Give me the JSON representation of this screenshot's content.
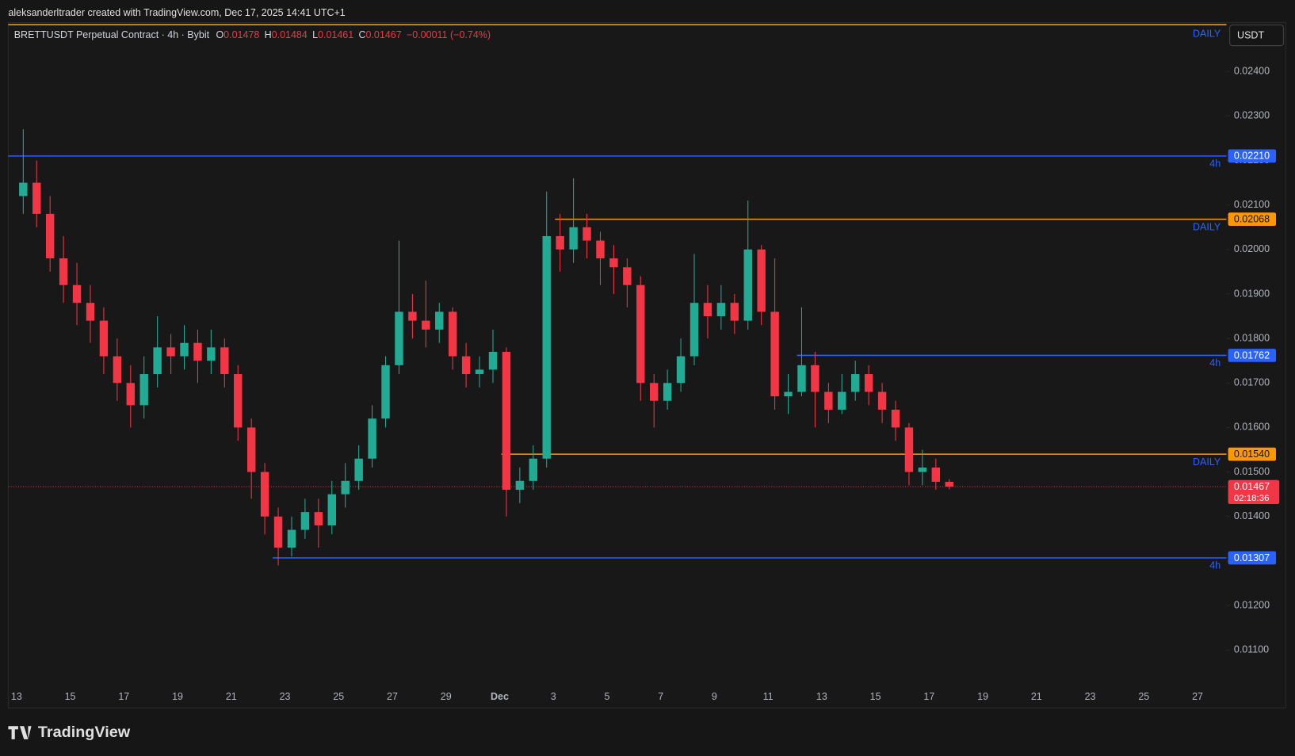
{
  "header": "aleksanderltrader created with TradingView.com, Dec 17, 2025 14:41 UTC+1",
  "logo": "TradingView",
  "currency": "USDT",
  "chart_data": {
    "type": "candlestick",
    "legend": {
      "symbol": "BRETTUSDT Perpetual Contract · 4h · Bybit",
      "ohlc": [
        {
          "key": "O",
          "value": "0.01478"
        },
        {
          "key": "H",
          "value": "0.01484"
        },
        {
          "key": "L",
          "value": "0.01461"
        },
        {
          "key": "C",
          "value": "0.01467"
        }
      ],
      "change": "−0.00011 (−0.74%)"
    },
    "up_color": "#22ab94",
    "down_color": "#f23645",
    "categories": [
      "13",
      null,
      null,
      null,
      "15",
      null,
      null,
      null,
      "17",
      null,
      null,
      null,
      "19",
      null,
      null,
      null,
      "21",
      null,
      null,
      null,
      "23",
      null,
      null,
      null,
      "25",
      null,
      null,
      null,
      "27",
      null,
      null,
      null,
      "29",
      null,
      null,
      null,
      "Dec",
      null,
      null,
      null,
      "3",
      null,
      null,
      null,
      "5",
      null,
      null,
      null,
      "7",
      null,
      null,
      null,
      "9",
      null,
      null,
      null,
      "11",
      null,
      null,
      null,
      "13",
      null,
      null,
      null,
      "15",
      null,
      null,
      null,
      "17",
      null,
      null,
      null,
      "19",
      null,
      null,
      null,
      "21",
      null,
      null,
      null,
      "23",
      null,
      null,
      null,
      "25",
      null,
      null,
      null,
      "27",
      null
    ],
    "open": [
      0.0212,
      0.0215,
      0.0208,
      0.0198,
      0.0192,
      0.0188,
      0.0184,
      0.0176,
      0.017,
      0.0165,
      0.0172,
      0.0178,
      0.0176,
      0.0179,
      0.0175,
      0.0178,
      0.0172,
      0.016,
      0.015,
      0.014,
      0.0133,
      0.0137,
      0.0141,
      0.0138,
      0.0145,
      0.0148,
      0.0153,
      0.0162,
      0.0174,
      0.0186,
      0.0184,
      0.0182,
      0.0186,
      0.0176,
      0.0172,
      0.0173,
      0.0177,
      0.0146,
      0.0148,
      0.0153,
      0.0203,
      0.02,
      0.0205,
      0.0202,
      0.0198,
      0.0196,
      0.0192,
      0.017,
      0.0166,
      0.017,
      0.0176,
      0.0188,
      0.0185,
      0.0188,
      0.0184,
      0.02,
      0.0186,
      0.0167,
      0.0168,
      0.0174,
      0.0168,
      0.0164,
      0.0168,
      0.0172,
      0.0168,
      0.0164,
      0.016,
      0.015,
      0.0151,
      0.01478,
      null,
      null,
      null,
      null,
      null,
      null,
      null,
      null,
      null,
      null,
      null,
      null,
      null,
      null,
      null,
      null,
      null,
      null,
      null,
      null
    ],
    "high": [
      0.0227,
      0.022,
      0.0212,
      0.0203,
      0.0197,
      0.0192,
      0.0187,
      0.018,
      0.0174,
      0.0176,
      0.0185,
      0.0181,
      0.0183,
      0.0182,
      0.0182,
      0.018,
      0.0174,
      0.0162,
      0.0152,
      0.0142,
      0.014,
      0.0144,
      0.0144,
      0.0148,
      0.0152,
      0.0156,
      0.0165,
      0.0176,
      0.0202,
      0.019,
      0.0193,
      0.0188,
      0.0187,
      0.0179,
      0.0176,
      0.0182,
      0.0178,
      0.0151,
      0.0156,
      0.0213,
      0.0208,
      0.0216,
      0.0208,
      0.0204,
      0.0201,
      0.0198,
      0.0194,
      0.0172,
      0.0173,
      0.018,
      0.0199,
      0.0192,
      0.0192,
      0.019,
      0.0211,
      0.0201,
      0.0198,
      0.0172,
      0.0187,
      0.0177,
      0.017,
      0.0172,
      0.0175,
      0.0174,
      0.017,
      0.0166,
      0.0161,
      0.0155,
      0.0153,
      0.01484,
      null,
      null,
      null,
      null,
      null,
      null,
      null,
      null,
      null,
      null,
      null,
      null,
      null,
      null,
      null,
      null,
      null,
      null,
      null,
      null
    ],
    "low": [
      0.0208,
      0.0205,
      0.0195,
      0.0188,
      0.0183,
      0.0179,
      0.0172,
      0.0166,
      0.016,
      0.0162,
      0.0169,
      0.0172,
      0.0173,
      0.017,
      0.0172,
      0.0169,
      0.0157,
      0.0144,
      0.0136,
      0.0129,
      0.0131,
      0.0135,
      0.0133,
      0.0136,
      0.0142,
      0.0146,
      0.0151,
      0.016,
      0.0172,
      0.018,
      0.0178,
      0.0179,
      0.0173,
      0.0169,
      0.0169,
      0.017,
      0.014,
      0.0143,
      0.0146,
      0.0151,
      0.0195,
      0.0197,
      0.0198,
      0.0192,
      0.019,
      0.0187,
      0.0166,
      0.016,
      0.0164,
      0.0168,
      0.0174,
      0.018,
      0.0182,
      0.0181,
      0.0182,
      0.0183,
      0.0164,
      0.0163,
      0.0167,
      0.016,
      0.0161,
      0.0163,
      0.0166,
      0.0165,
      0.0161,
      0.0157,
      0.0147,
      0.0147,
      0.0146,
      0.01461,
      null,
      null,
      null,
      null,
      null,
      null,
      null,
      null,
      null,
      null,
      null,
      null,
      null,
      null,
      null,
      null,
      null,
      null,
      null,
      null
    ],
    "close": [
      0.0215,
      0.0208,
      0.0198,
      0.0192,
      0.0188,
      0.0184,
      0.0176,
      0.017,
      0.0165,
      0.0172,
      0.0178,
      0.0176,
      0.0179,
      0.0175,
      0.0178,
      0.0172,
      0.016,
      0.015,
      0.014,
      0.0133,
      0.0137,
      0.0141,
      0.0138,
      0.0145,
      0.0148,
      0.0153,
      0.0162,
      0.0174,
      0.0186,
      0.0184,
      0.0182,
      0.0186,
      0.0176,
      0.0172,
      0.0173,
      0.0177,
      0.0146,
      0.0148,
      0.0153,
      0.0203,
      0.02,
      0.0205,
      0.0202,
      0.0198,
      0.0196,
      0.0192,
      0.017,
      0.0166,
      0.017,
      0.0176,
      0.0188,
      0.0185,
      0.0188,
      0.0184,
      0.02,
      0.0186,
      0.0167,
      0.0168,
      0.0174,
      0.0168,
      0.0164,
      0.0168,
      0.0172,
      0.0168,
      0.0164,
      0.016,
      0.015,
      0.0151,
      0.01478,
      0.01467,
      null,
      null,
      null,
      null,
      null,
      null,
      null,
      null,
      null,
      null,
      null,
      null,
      null,
      null,
      null,
      null,
      null,
      null,
      null,
      null
    ],
    "ylim": [
      0.0102,
      0.0251
    ],
    "yticks": [
      {
        "value": 0.011,
        "label": "0.01100"
      },
      {
        "value": 0.012,
        "label": "0.01200"
      },
      {
        "value": 0.013,
        "label": "0.01300"
      },
      {
        "value": 0.014,
        "label": "0.01400"
      },
      {
        "value": 0.015,
        "label": "0.01500"
      },
      {
        "value": 0.016,
        "label": "0.01600"
      },
      {
        "value": 0.017,
        "label": "0.01700"
      },
      {
        "value": 0.018,
        "label": "0.01800"
      },
      {
        "value": 0.019,
        "label": "0.01900"
      },
      {
        "value": 0.02,
        "label": "0.02000"
      },
      {
        "value": 0.021,
        "label": "0.02100"
      },
      {
        "value": 0.022,
        "label": "0.02200"
      },
      {
        "value": 0.023,
        "label": "0.02300"
      },
      {
        "value": 0.024,
        "label": "0.02400"
      }
    ],
    "levels": [
      {
        "value": 0.02505,
        "label": "DAILY",
        "color": "#ff9800"
      },
      {
        "value": 0.0221,
        "price_label": "0.02210",
        "label": "4h",
        "color": "#2962ff"
      },
      {
        "value": 0.02068,
        "price_label": "0.02068",
        "label": "DAILY",
        "color": "#ff9800"
      },
      {
        "value": 0.01762,
        "price_label": "0.01762",
        "label": "4h",
        "color": "#2962ff"
      },
      {
        "value": 0.0154,
        "price_label": "0.01540",
        "label": "DAILY",
        "color": "#ff9800"
      },
      {
        "value": 0.01307,
        "price_label": "0.01307",
        "label": "4h",
        "color": "#2962ff"
      }
    ],
    "last_price": {
      "value": 0.01467,
      "label": "0.01467",
      "countdown": "02:18:36",
      "color": "#f23645"
    }
  }
}
